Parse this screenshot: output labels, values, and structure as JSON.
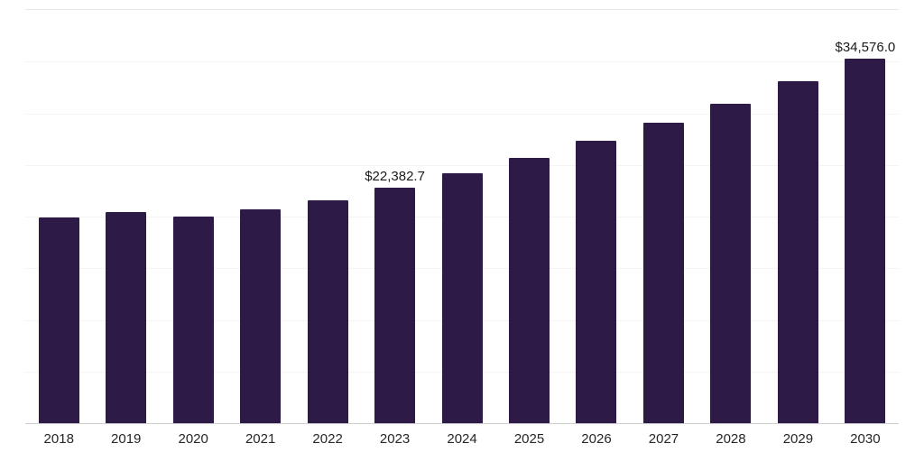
{
  "chart_data": {
    "type": "bar",
    "title": "",
    "xlabel": "",
    "ylabel": "",
    "categories": [
      "2018",
      "2019",
      "2020",
      "2021",
      "2022",
      "2023",
      "2024",
      "2025",
      "2026",
      "2027",
      "2028",
      "2029",
      "2030"
    ],
    "values": [
      19500,
      20000,
      19600,
      20300,
      21100,
      22382.7,
      23700,
      25200,
      26800,
      28500,
      30300,
      32400,
      34576.0
    ],
    "data_labels": {
      "2023": "$22,382.7",
      "2030": "$34,576.0"
    },
    "bar_color": "#2e1a47",
    "ylim": [
      0,
      39200
    ],
    "grid": "horizontal",
    "gridline_count": 8,
    "legend": "none"
  }
}
